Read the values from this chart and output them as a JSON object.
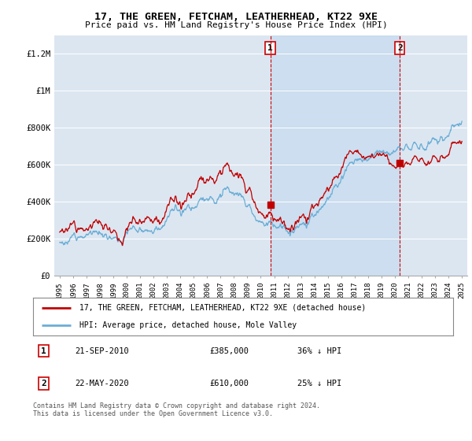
{
  "title": "17, THE GREEN, FETCHAM, LEATHERHEAD, KT22 9XE",
  "subtitle": "Price paid vs. HM Land Registry's House Price Index (HPI)",
  "legend_line1": "17, THE GREEN, FETCHAM, LEATHERHEAD, KT22 9XE (detached house)",
  "legend_line2": "HPI: Average price, detached house, Mole Valley",
  "footnote": "Contains HM Land Registry data © Crown copyright and database right 2024.\nThis data is licensed under the Open Government Licence v3.0.",
  "annotation1_label": "1",
  "annotation1_date": "21-SEP-2010",
  "annotation1_price": "£385,000",
  "annotation1_hpi": "36% ↓ HPI",
  "annotation2_label": "2",
  "annotation2_date": "22-MAY-2020",
  "annotation2_price": "£610,000",
  "annotation2_hpi": "25% ↓ HPI",
  "hpi_color": "#6baed6",
  "hpi_shade_color": "#c6dbef",
  "price_color": "#c00000",
  "dashed_color": "#cc0000",
  "plot_bg_color": "#dce6f1",
  "ylim": [
    0,
    1300000
  ],
  "yticks": [
    0,
    200000,
    400000,
    600000,
    800000,
    1000000,
    1200000
  ],
  "ytick_labels": [
    "£0",
    "£200K",
    "£400K",
    "£600K",
    "£800K",
    "£1M",
    "£1.2M"
  ],
  "sale1_year": 2010.708,
  "sale1_price": 385000,
  "sale2_year": 2020.375,
  "sale2_price": 610000
}
